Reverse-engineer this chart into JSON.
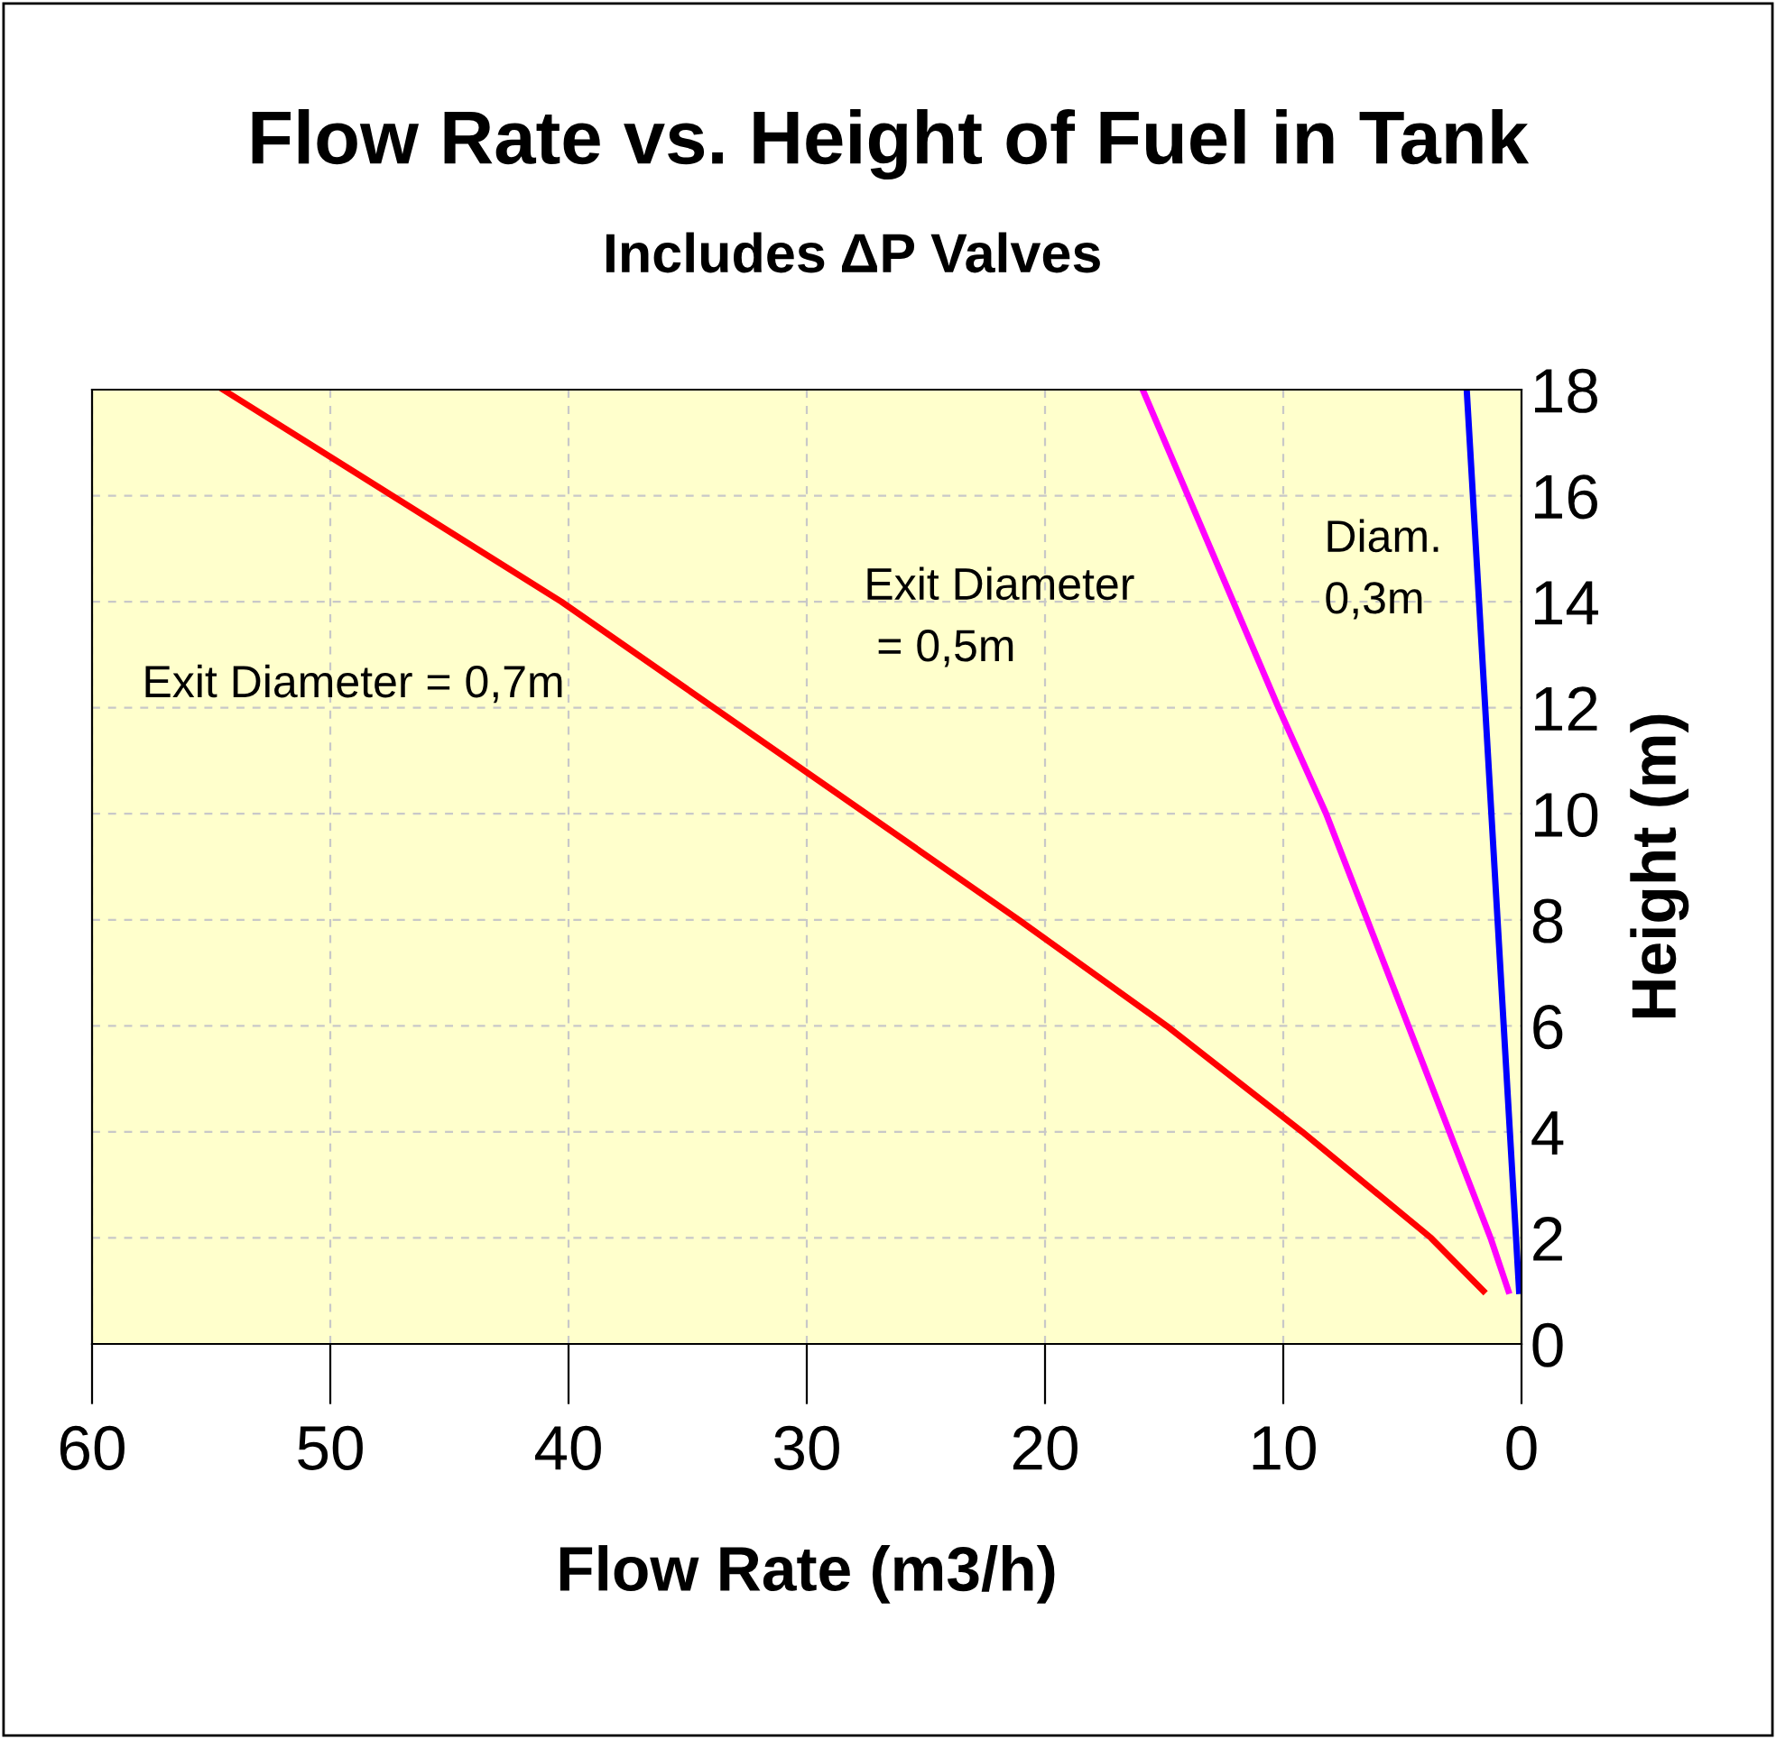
{
  "chart_data": {
    "type": "line",
    "title": "Flow Rate vs. Height of Fuel in Tank",
    "subtitle": "Includes ΔP Valves",
    "xlabel": "Flow Rate (m3/h)",
    "ylabel": "Height (m)",
    "series": [
      {
        "color": "#ff0000",
        "x": [
          54.5,
          40.3,
          21.1,
          14.9,
          9.2,
          3.8,
          1.6
        ],
        "values": [
          18,
          14,
          8,
          6,
          4,
          2,
          1
        ]
      },
      {
        "color": "#ff00ff",
        "x": [
          15.9,
          10.2,
          8.2,
          1.3,
          0.55
        ],
        "values": [
          18,
          12,
          10,
          2,
          1
        ]
      },
      {
        "color": "#0000ff",
        "x": [
          2.3,
          0.1
        ],
        "values": [
          18,
          1
        ]
      }
    ],
    "annotations": [
      "Exit Diameter = 0,7m",
      "Exit Diameter\n = 0,5m",
      "Diam.\n0,3m"
    ],
    "xlim": [
      60,
      0
    ],
    "xticks": [
      60,
      50,
      40,
      30,
      20,
      10,
      0
    ],
    "ylim": [
      0,
      18
    ],
    "yticks": [
      0,
      2,
      4,
      6,
      8,
      10,
      12,
      14,
      16,
      18
    ],
    "grid": true,
    "line_style": "solid",
    "marker": "none"
  }
}
